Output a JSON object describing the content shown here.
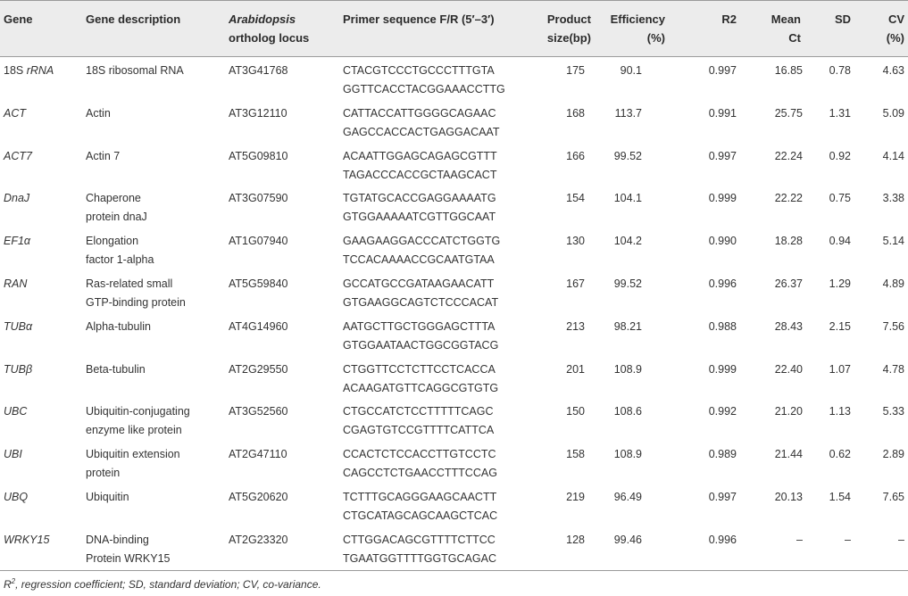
{
  "headers": {
    "gene": "Gene",
    "description": "Gene description",
    "ortholog_line1": "Arabidopsis",
    "ortholog_line2": "ortholog locus",
    "primer": "Primer sequence F/R (5′–3′)",
    "product_line1": "Product",
    "product_line2": "size(bp)",
    "efficiency_line1": "Efficiency",
    "efficiency_line2": "(%)",
    "r2": "R2",
    "meanct_line1": "Mean",
    "meanct_line2": "Ct",
    "sd": "SD",
    "cv_line1": "CV",
    "cv_line2": "(%)"
  },
  "rows": [
    {
      "gene_prefix": "18S ",
      "gene": "rRNA",
      "desc1": "18S ribosomal RNA",
      "desc2": "",
      "locus": "AT3G41768",
      "primer_f": "CTACGTCCCTGCCCTTTGTA",
      "primer_r": "GGTTCACCTACGGAAACCTTG",
      "product": "175",
      "efficiency": "90.1",
      "r2": "0.997",
      "mean_ct": "16.85",
      "sd": "0.78",
      "cv": "4.63"
    },
    {
      "gene_prefix": "",
      "gene": "ACT",
      "desc1": "Actin",
      "desc2": "",
      "locus": "AT3G12110",
      "primer_f": "CATTACCATTGGGGCAGAAC",
      "primer_r": "GAGCCACCACTGAGGACAAT",
      "product": "168",
      "efficiency": "113.7",
      "r2": "0.991",
      "mean_ct": "25.75",
      "sd": "1.31",
      "cv": "5.09"
    },
    {
      "gene_prefix": "",
      "gene": "ACT7",
      "desc1": "Actin 7",
      "desc2": "",
      "locus": "AT5G09810",
      "primer_f": "ACAATTGGAGCAGAGCGTTT",
      "primer_r": "TAGACCCACCGCTAAGCACT",
      "product": "166",
      "efficiency": "99.52",
      "r2": "0.997",
      "mean_ct": "22.24",
      "sd": "0.92",
      "cv": "4.14"
    },
    {
      "gene_prefix": "",
      "gene": "DnaJ",
      "desc1": "Chaperone",
      "desc2": "protein dnaJ",
      "locus": "AT3G07590",
      "primer_f": "TGTATGCACCGAGGAAAATG",
      "primer_r": "GTGGAAAAATCGTTGGCAAT",
      "product": "154",
      "efficiency": "104.1",
      "r2": "0.999",
      "mean_ct": "22.22",
      "sd": "0.75",
      "cv": "3.38"
    },
    {
      "gene_prefix": "",
      "gene": "EF1α",
      "desc1": "Elongation",
      "desc2": "factor 1-alpha",
      "locus": "AT1G07940",
      "primer_f": "GAAGAAGGACCCATCTGGTG",
      "primer_r": "TCCACAAAACCGCAATGTAA",
      "product": "130",
      "efficiency": "104.2",
      "r2": "0.990",
      "mean_ct": "18.28",
      "sd": "0.94",
      "cv": "5.14"
    },
    {
      "gene_prefix": "",
      "gene": "RAN",
      "desc1": "Ras-related small",
      "desc2": "GTP-binding protein",
      "locus": "AT5G59840",
      "primer_f": "GCCATGCCGATAAGAACATT",
      "primer_r": "GTGAAGGCAGTCTCCCACAT",
      "product": "167",
      "efficiency": "99.52",
      "r2": "0.996",
      "mean_ct": "26.37",
      "sd": "1.29",
      "cv": "4.89"
    },
    {
      "gene_prefix": "",
      "gene": "TUBα",
      "desc1": "Alpha-tubulin",
      "desc2": "",
      "locus": "AT4G14960",
      "primer_f": "AATGCTTGCTGGGAGCTTTA",
      "primer_r": "GTGGAATAACTGGCGGTACG",
      "product": "213",
      "efficiency": "98.21",
      "r2": "0.988",
      "mean_ct": "28.43",
      "sd": "2.15",
      "cv": "7.56"
    },
    {
      "gene_prefix": "",
      "gene": "TUBβ",
      "desc1": "Beta-tubulin",
      "desc2": "",
      "locus": "AT2G29550",
      "primer_f": "CTGGTTCCTCTTCCTCACCA",
      "primer_r": "ACAAGATGTTCAGGCGTGTG",
      "product": "201",
      "efficiency": "108.9",
      "r2": "0.999",
      "mean_ct": "22.40",
      "sd": "1.07",
      "cv": "4.78"
    },
    {
      "gene_prefix": "",
      "gene": "UBC",
      "desc1": "Ubiquitin-conjugating",
      "desc2": "enzyme like protein",
      "locus": "AT3G52560",
      "primer_f": "CTGCCATCTCCTTTTTCAGC",
      "primer_r": "CGAGTGTCCGTTTTCATTCA",
      "product": "150",
      "efficiency": "108.6",
      "r2": "0.992",
      "mean_ct": "21.20",
      "sd": "1.13",
      "cv": "5.33"
    },
    {
      "gene_prefix": "",
      "gene": "UBI",
      "desc1": "Ubiquitin extension",
      "desc2": "protein",
      "locus": "AT2G47110",
      "primer_f": "CCACTCTCCACCTTGTCCTC",
      "primer_r": "CAGCCTCTGAACCTTTCCAG",
      "product": "158",
      "efficiency": "108.9",
      "r2": "0.989",
      "mean_ct": "21.44",
      "sd": "0.62",
      "cv": "2.89"
    },
    {
      "gene_prefix": "",
      "gene": "UBQ",
      "desc1": "Ubiquitin",
      "desc2": "",
      "locus": "AT5G20620",
      "primer_f": "TCTTTGCAGGGAAGCAACTT",
      "primer_r": "CTGCATAGCAGCAAGCTCAC",
      "product": "219",
      "efficiency": "96.49",
      "r2": "0.997",
      "mean_ct": "20.13",
      "sd": "1.54",
      "cv": "7.65"
    },
    {
      "gene_prefix": "",
      "gene": "WRKY15",
      "desc1": "DNA-binding",
      "desc2": "Protein WRKY15",
      "locus": "AT2G23320",
      "primer_f": "CTTGGACAGCGTTTTCTTCC",
      "primer_r": "TGAATGGTTTTGGTGCAGAC",
      "product": "128",
      "efficiency": "99.46",
      "r2": "0.996",
      "mean_ct": "–",
      "sd": "–",
      "cv": "–"
    }
  ],
  "footnote": {
    "r_letter": "R",
    "r_sup": "2",
    "rest": ", regression coefficient; SD, standard deviation; CV, co-variance."
  }
}
